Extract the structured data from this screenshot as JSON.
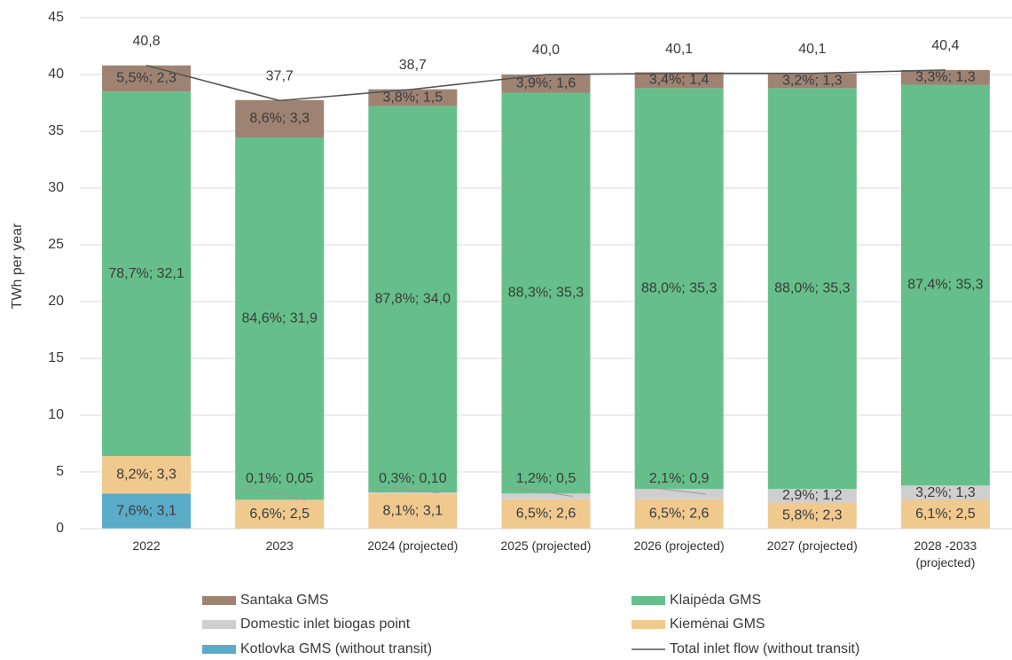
{
  "chart_data": {
    "type": "bar",
    "stacked": true,
    "y_label": "TWh per year",
    "categories": [
      "2022",
      "2023",
      "2024 (projected)",
      "2025 (projected)",
      "2026 (projected)",
      "2027 (projected)",
      "2028 -2033 (projected)"
    ],
    "ylim": [
      0,
      45
    ],
    "yticks": [
      0,
      5,
      10,
      15,
      20,
      25,
      30,
      35,
      40,
      45
    ],
    "grid": true,
    "series": [
      {
        "name": "Kotlovka GMS (without transit)",
        "color": "#5aabc7",
        "values": [
          3.1,
          null,
          null,
          null,
          null,
          null,
          null
        ],
        "value_labels": [
          "7,6%; 3,1",
          null,
          null,
          null,
          null,
          null,
          null
        ]
      },
      {
        "name": "Kiemėnai GMS",
        "color": "#f0c98e",
        "values": [
          3.3,
          2.5,
          3.1,
          2.6,
          2.6,
          2.3,
          2.5
        ],
        "value_labels": [
          "8,2%; 3,3",
          "6,6%; 2,5",
          "8,1%; 3,1",
          "6,5%; 2,6",
          "6,5%; 2,6",
          "5,8%; 2,3",
          "6,1%; 2,5"
        ]
      },
      {
        "name": "Domestic inlet biogas point",
        "color": "#cfcfcf",
        "values": [
          null,
          0.05,
          0.1,
          0.5,
          0.9,
          1.2,
          1.3
        ],
        "value_labels": [
          null,
          "0,1%; 0,05",
          "0,3%; 0,10",
          "1,2%; 0,5",
          "2,1%; 0,9",
          "2,9%; 1,2",
          "3,2%; 1,3"
        ]
      },
      {
        "name": "Klaipėda GMS",
        "color": "#66bf8a",
        "values": [
          32.1,
          31.9,
          34.0,
          35.3,
          35.3,
          35.3,
          35.3
        ],
        "value_labels": [
          "78,7%; 32,1",
          "84,6%; 31,9",
          "87,8%; 34,0",
          "88,3%; 35,3",
          "88,0%; 35,3",
          "88,0%; 35,3",
          "87,4%; 35,3"
        ]
      },
      {
        "name": "Santaka GMS",
        "color": "#9e8373",
        "values": [
          2.3,
          3.3,
          1.5,
          1.6,
          1.4,
          1.3,
          1.3
        ],
        "value_labels": [
          "5,5%; 2,3",
          "8,6%; 3,3",
          "3,8%; 1,5",
          "3,9%; 1,6",
          "3,4%; 1,4",
          "3,2%; 1,3",
          "3,3%; 1,3"
        ]
      }
    ],
    "line": {
      "name": "Total inlet flow (without transit)",
      "color": "#555555",
      "values": [
        40.8,
        37.7,
        38.7,
        40.0,
        40.1,
        40.1,
        40.4
      ],
      "value_labels": [
        "40,8",
        "37,7",
        "38,7",
        "40,0",
        "40,1",
        "40,1",
        "40,4"
      ]
    }
  }
}
